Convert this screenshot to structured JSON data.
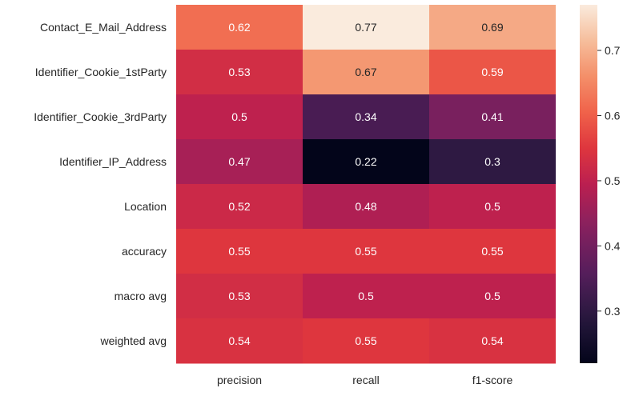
{
  "chart_data": {
    "type": "heatmap",
    "title": "",
    "xlabel": "",
    "ylabel": "",
    "x_categories": [
      "precision",
      "recall",
      "f1-score"
    ],
    "y_categories": [
      "Contact_E_Mail_Address",
      "Identifier_Cookie_1stParty",
      "Identifier_Cookie_3rdParty",
      "Identifier_IP_Address",
      "Location",
      "accuracy",
      "macro avg",
      "weighted avg"
    ],
    "values": [
      [
        0.62,
        0.77,
        0.69
      ],
      [
        0.53,
        0.67,
        0.59
      ],
      [
        0.5,
        0.34,
        0.41
      ],
      [
        0.47,
        0.22,
        0.3
      ],
      [
        0.52,
        0.48,
        0.5
      ],
      [
        0.55,
        0.55,
        0.55
      ],
      [
        0.53,
        0.5,
        0.5
      ],
      [
        0.54,
        0.55,
        0.54
      ]
    ],
    "annotations": true,
    "colormap": "rocket",
    "colorbar": {
      "vmin": 0.22,
      "vmax": 0.77,
      "ticks": [
        0.3,
        0.4,
        0.5,
        0.6,
        0.7
      ],
      "tick_labels": [
        "0.3",
        "0.4",
        "0.5",
        "0.6",
        "0.7"
      ]
    },
    "grid": false
  }
}
